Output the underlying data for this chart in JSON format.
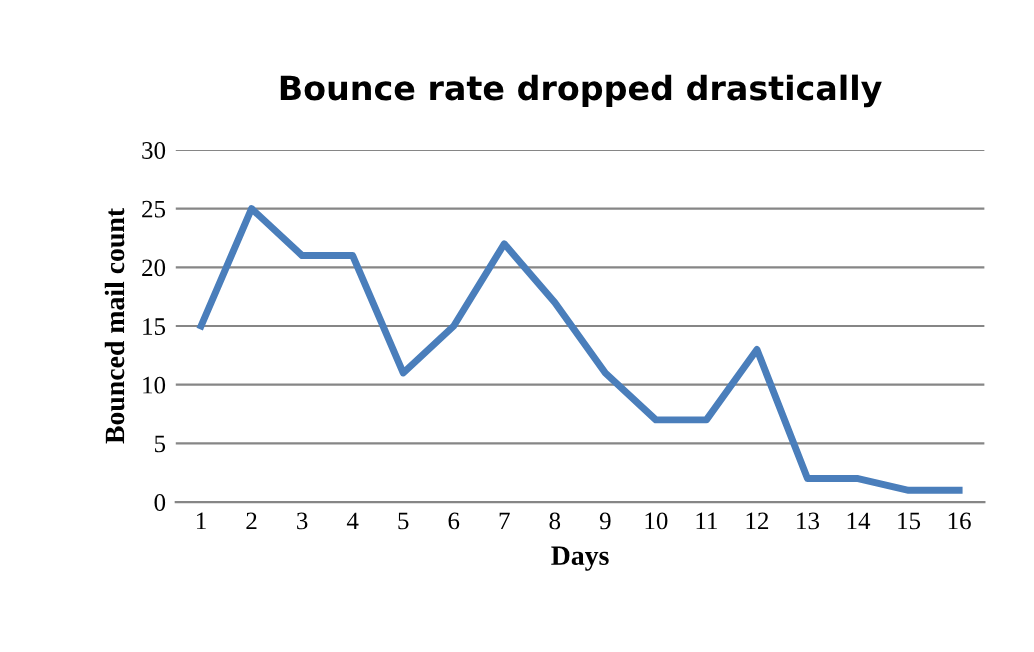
{
  "chart_data": {
    "type": "line",
    "title": "Bounce rate dropped drastically",
    "xlabel": "Days",
    "ylabel": "Bounced mail count",
    "categories": [
      "1",
      "2",
      "3",
      "4",
      "5",
      "6",
      "7",
      "8",
      "9",
      "10",
      "11",
      "12",
      "13",
      "14",
      "15",
      "16"
    ],
    "series": [
      {
        "color": "#4a7ebb",
        "values": [
          15,
          25,
          21,
          21,
          11,
          15,
          22,
          17,
          11,
          7,
          7,
          13,
          2,
          2,
          1,
          1
        ]
      }
    ],
    "ylim": [
      0,
      30
    ],
    "yticks": [
      0,
      5,
      10,
      15,
      20,
      25,
      30
    ],
    "grid": "y",
    "legend": false,
    "marker": "none",
    "line_style": "solid"
  }
}
